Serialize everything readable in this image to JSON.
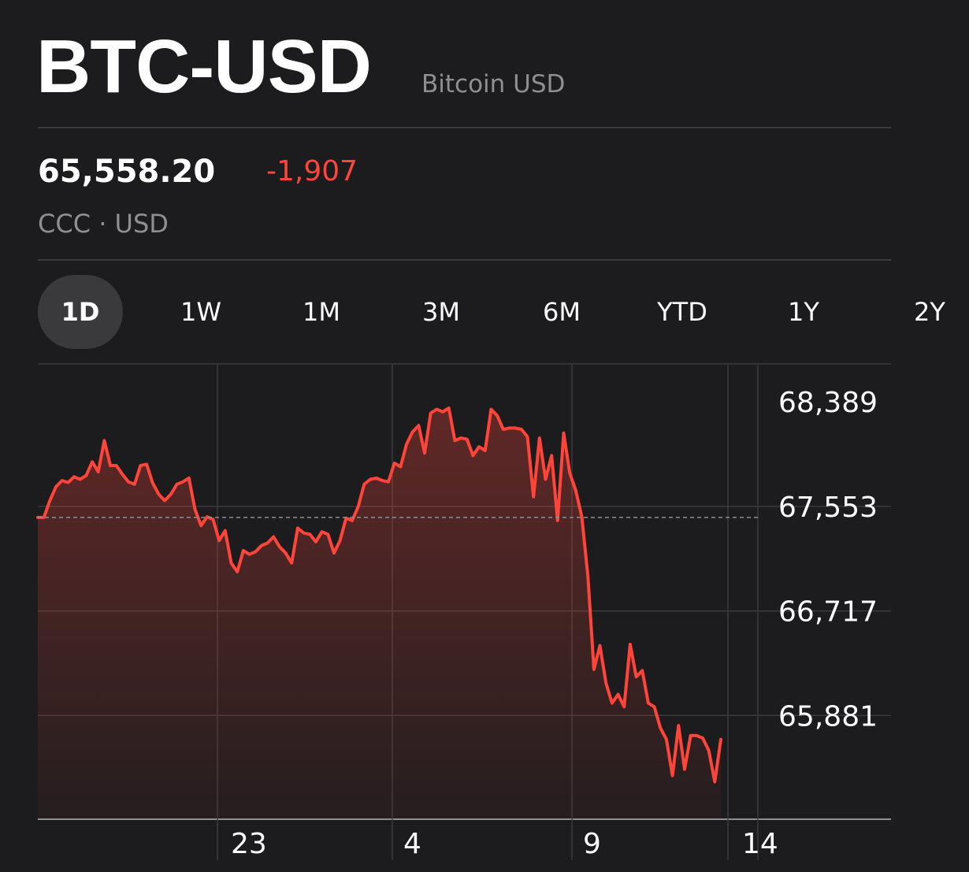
{
  "header": {
    "symbol": "BTC-USD",
    "name": "Bitcoin USD"
  },
  "quote": {
    "price": "65,558.20",
    "change": "-1,907",
    "exchange": "CCC · USD"
  },
  "colors": {
    "background": "#1c1c1e",
    "line": "#ff453a",
    "negative": "#ff453a",
    "secondary_text": "#8e8e93",
    "grid": "#3a3a3c"
  },
  "tabs": [
    {
      "label": "1D",
      "active": true
    },
    {
      "label": "1W",
      "active": false
    },
    {
      "label": "1M",
      "active": false
    },
    {
      "label": "3M",
      "active": false
    },
    {
      "label": "6M",
      "active": false
    },
    {
      "label": "YTD",
      "active": false
    },
    {
      "label": "1Y",
      "active": false
    },
    {
      "label": "2Y",
      "active": false
    }
  ],
  "chart_data": {
    "type": "area",
    "title": "",
    "xlabel": "",
    "ylabel": "",
    "ylim": [
      65051,
      68693
    ],
    "y_ticks": [
      {
        "value": 68389,
        "label": "68,389"
      },
      {
        "value": 67553,
        "label": "67,553"
      },
      {
        "value": 66717,
        "label": "66,717"
      },
      {
        "value": 65881,
        "label": "65,881"
      }
    ],
    "x_ticks": [
      "23",
      "4",
      "9",
      "14"
    ],
    "previous_close": 67465,
    "grid": true,
    "series": [
      {
        "values": [
          67465,
          67465,
          67600,
          67710,
          67760,
          67745,
          67790,
          67770,
          67800,
          67910,
          67830,
          68080,
          67880,
          67880,
          67810,
          67750,
          67730,
          67880,
          67890,
          67740,
          67650,
          67600,
          67650,
          67730,
          67750,
          67780,
          67530,
          67400,
          67470,
          67450,
          67280,
          67360,
          67100,
          67030,
          67200,
          67170,
          67190,
          67240,
          67260,
          67310,
          67230,
          67180,
          67100,
          67380,
          67340,
          67330,
          67270,
          67350,
          67330,
          67180,
          67280,
          67460,
          67440,
          67550,
          67730,
          67770,
          67780,
          67760,
          67750,
          67900,
          67870,
          68050,
          68150,
          68200,
          67980,
          68300,
          68330,
          68310,
          68340,
          68080,
          68100,
          68090,
          67960,
          68030,
          68000,
          68330,
          68280,
          68170,
          68180,
          68180,
          68170,
          68110,
          67630,
          68100,
          67770,
          67960,
          67440,
          68140,
          67820,
          67680,
          67470,
          67000,
          66250,
          66440,
          66140,
          65980,
          66050,
          65950,
          66450,
          66190,
          66240,
          65980,
          65950,
          65780,
          65690,
          65400,
          65800,
          65450,
          65720,
          65720,
          65700,
          65600,
          65350,
          65690
        ]
      }
    ]
  }
}
